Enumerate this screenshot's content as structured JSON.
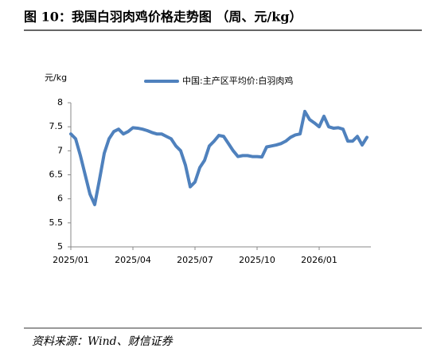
{
  "chart_data": {
    "type": "line",
    "title": "图 10：我国白羽肉鸡价格走势图 （周、元/kg）",
    "y_label": "元/kg",
    "source": "资料来源：Wind、财信证券",
    "categories": [
      "2025/01",
      null,
      null,
      null,
      null,
      null,
      null,
      null,
      null,
      null,
      null,
      null,
      null,
      "2025/04",
      null,
      null,
      null,
      null,
      null,
      null,
      null,
      null,
      null,
      null,
      null,
      null,
      "2025/07",
      null,
      null,
      null,
      null,
      null,
      null,
      null,
      null,
      null,
      null,
      null,
      null,
      "2025/10",
      null,
      null,
      null,
      null,
      null,
      null,
      null,
      null,
      null,
      null,
      null,
      null,
      "2026/01",
      null,
      null,
      null,
      null,
      null,
      null,
      null,
      null,
      null,
      null
    ],
    "series": [
      {
        "name": "中国:主产区平均价:白羽肉鸡",
        "color": "#4f81bd",
        "values": [
          7.35,
          7.25,
          6.9,
          6.5,
          6.1,
          5.88,
          6.4,
          6.95,
          7.25,
          7.4,
          7.45,
          7.35,
          7.4,
          7.48,
          7.47,
          7.45,
          7.42,
          7.38,
          7.35,
          7.35,
          7.3,
          7.25,
          7.1,
          7.0,
          6.7,
          6.25,
          6.35,
          6.65,
          6.8,
          7.1,
          7.2,
          7.32,
          7.3,
          7.15,
          7.0,
          6.88,
          6.9,
          6.9,
          6.88,
          6.88,
          6.87,
          7.08,
          7.1,
          7.12,
          7.15,
          7.2,
          7.28,
          7.33,
          7.35,
          7.82,
          7.65,
          7.58,
          7.5,
          7.72,
          7.5,
          7.47,
          7.48,
          7.45,
          7.2,
          7.2,
          7.3,
          7.12,
          7.28
        ]
      }
    ],
    "ylim": [
      5,
      8
    ],
    "yticks": [
      5,
      5.5,
      6,
      6.5,
      7,
      7.5,
      8
    ],
    "grid": false,
    "legend": "top"
  }
}
